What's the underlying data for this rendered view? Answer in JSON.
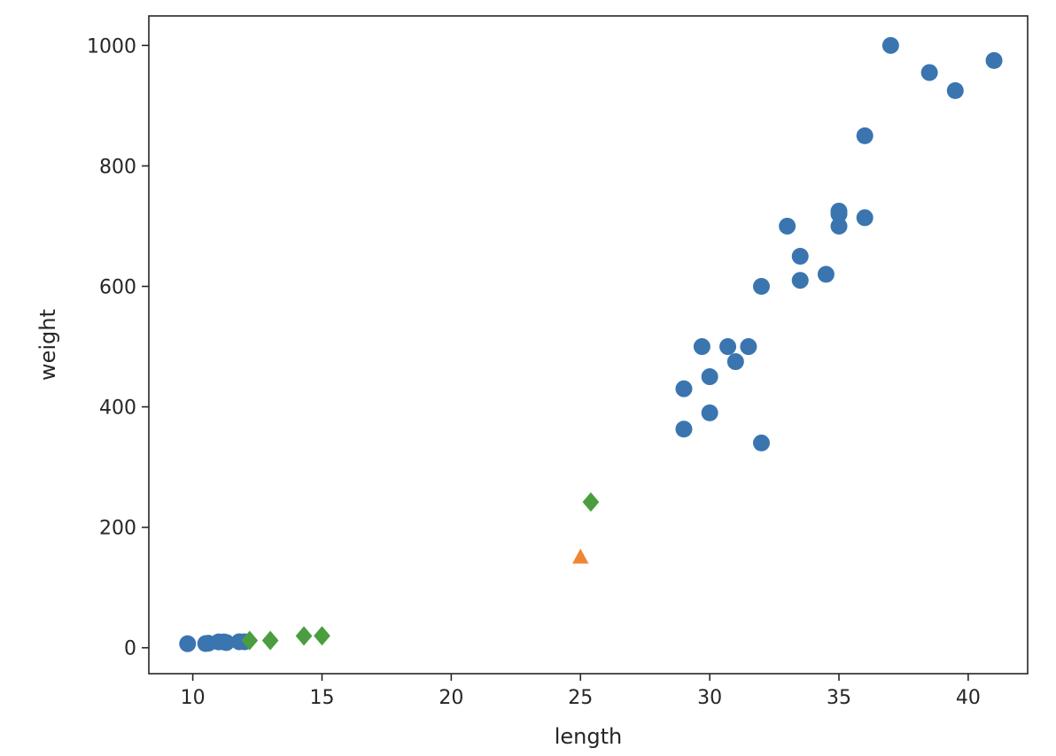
{
  "chart_data": {
    "type": "scatter",
    "title": "",
    "xlabel": "length",
    "ylabel": "weight",
    "xlim": [
      8.3,
      42.3
    ],
    "ylim": [
      -43,
      1049
    ],
    "xticks": [
      10,
      15,
      20,
      25,
      30,
      35,
      40
    ],
    "yticks": [
      0,
      200,
      400,
      600,
      800,
      1000
    ],
    "grid": false,
    "legend": "none",
    "series": [
      {
        "marker": "circle",
        "color": "#3a75b0",
        "points": [
          [
            9.8,
            6.7
          ],
          [
            10.5,
            7.0
          ],
          [
            10.6,
            7.5
          ],
          [
            11.0,
            9.7
          ],
          [
            11.2,
            9.8
          ],
          [
            11.3,
            8.7
          ],
          [
            11.8,
            10.0
          ],
          [
            12.0,
            9.9
          ],
          [
            29.0,
            430
          ],
          [
            29.0,
            363
          ],
          [
            29.7,
            500
          ],
          [
            30.0,
            450
          ],
          [
            30.0,
            390
          ],
          [
            30.7,
            500
          ],
          [
            31.0,
            475
          ],
          [
            31.5,
            500
          ],
          [
            32.0,
            600
          ],
          [
            32.0,
            340
          ],
          [
            33.0,
            700
          ],
          [
            33.5,
            610
          ],
          [
            33.5,
            650
          ],
          [
            34.5,
            620
          ],
          [
            35.0,
            700
          ],
          [
            35.0,
            725
          ],
          [
            35.0,
            720
          ],
          [
            36.0,
            714
          ],
          [
            36.0,
            850
          ],
          [
            37.0,
            1000
          ],
          [
            38.5,
            955
          ],
          [
            39.5,
            925
          ],
          [
            41.0,
            975
          ]
        ]
      },
      {
        "marker": "triangle",
        "color": "#ef8636",
        "points": [
          [
            25,
            150
          ]
        ]
      },
      {
        "marker": "diamond",
        "color": "#4a9e3f",
        "points": [
          [
            12.2,
            12.2
          ],
          [
            13.0,
            12.2
          ],
          [
            14.3,
            19.7
          ],
          [
            15.0,
            19.9
          ],
          [
            25.4,
            242
          ]
        ]
      }
    ]
  }
}
